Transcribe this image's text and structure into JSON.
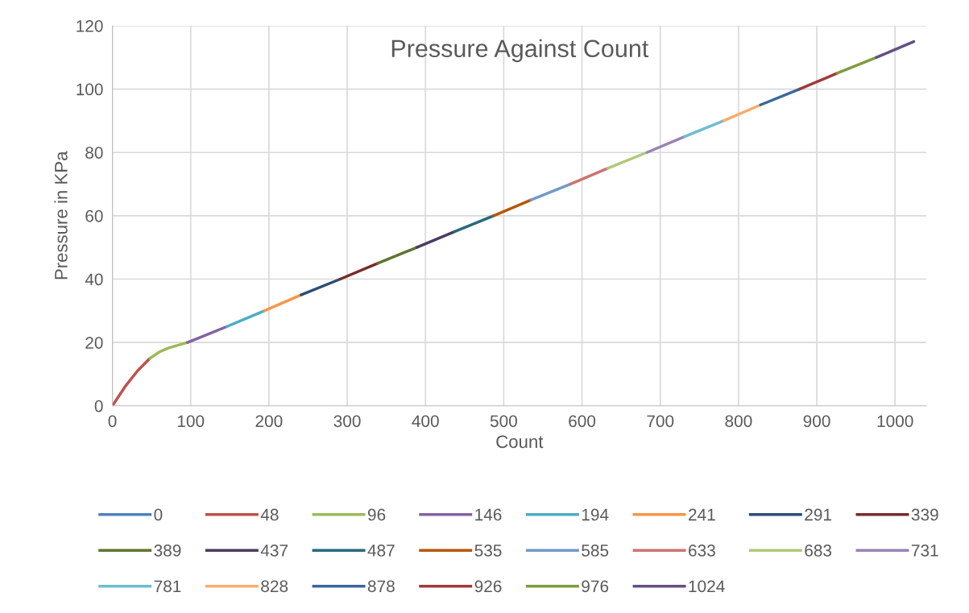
{
  "chart_data": {
    "type": "line",
    "title": "Pressure Against Count",
    "xlabel": "Count",
    "ylabel": "Pressure in KPa",
    "xlim": [
      0,
      1040
    ],
    "xticks": [
      0,
      100,
      200,
      300,
      400,
      500,
      600,
      700,
      800,
      900,
      1000
    ],
    "ylim": [
      0,
      120
    ],
    "yticks": [
      0,
      20,
      40,
      60,
      80,
      100,
      120
    ],
    "grid": true,
    "legend": "bottom",
    "marker": "none",
    "line_style": "solid",
    "series": [
      {
        "name": "0",
        "color": "#4f81bd",
        "x": [
          0
        ],
        "values": [
          0
        ]
      },
      {
        "name": "48",
        "color": "#c0504d",
        "x": [
          0,
          16,
          32,
          48
        ],
        "values": [
          0,
          6,
          11,
          15
        ]
      },
      {
        "name": "96",
        "color": "#9bbb59",
        "x": [
          48,
          60,
          72,
          96
        ],
        "values": [
          15,
          17,
          18.3,
          20
        ]
      },
      {
        "name": "146",
        "color": "#8064a2",
        "x": [
          96,
          146
        ],
        "values": [
          20,
          25
        ]
      },
      {
        "name": "194",
        "color": "#4bacc6",
        "x": [
          146,
          194
        ],
        "values": [
          25,
          30
        ]
      },
      {
        "name": "241",
        "color": "#f79646",
        "x": [
          194,
          241
        ],
        "values": [
          30,
          35
        ]
      },
      {
        "name": "291",
        "color": "#2c4d75",
        "x": [
          241,
          291
        ],
        "values": [
          35,
          40
        ]
      },
      {
        "name": "339",
        "color": "#772c2a",
        "x": [
          291,
          339
        ],
        "values": [
          40,
          45
        ]
      },
      {
        "name": "389",
        "color": "#5f7530",
        "x": [
          339,
          389
        ],
        "values": [
          45,
          50
        ]
      },
      {
        "name": "437",
        "color": "#4d3b62",
        "x": [
          389,
          437
        ],
        "values": [
          50,
          55
        ]
      },
      {
        "name": "487",
        "color": "#276a7c",
        "x": [
          437,
          487
        ],
        "values": [
          55,
          60
        ]
      },
      {
        "name": "535",
        "color": "#b65708",
        "x": [
          487,
          535
        ],
        "values": [
          60,
          65
        ]
      },
      {
        "name": "585",
        "color": "#729aca",
        "x": [
          535,
          585
        ],
        "values": [
          65,
          70
        ]
      },
      {
        "name": "633",
        "color": "#cd7371",
        "x": [
          585,
          633
        ],
        "values": [
          70,
          75
        ]
      },
      {
        "name": "683",
        "color": "#afc97a",
        "x": [
          633,
          683
        ],
        "values": [
          75,
          80
        ]
      },
      {
        "name": "731",
        "color": "#9983b5",
        "x": [
          683,
          731
        ],
        "values": [
          80,
          85
        ]
      },
      {
        "name": "781",
        "color": "#6fbdd1",
        "x": [
          731,
          781
        ],
        "values": [
          85,
          90
        ]
      },
      {
        "name": "828",
        "color": "#f9ab6b",
        "x": [
          781,
          828
        ],
        "values": [
          90,
          95
        ]
      },
      {
        "name": "878",
        "color": "#3a679c",
        "x": [
          828,
          878
        ],
        "values": [
          95,
          100
        ]
      },
      {
        "name": "926",
        "color": "#9f3b38",
        "x": [
          878,
          926
        ],
        "values": [
          100,
          105
        ]
      },
      {
        "name": "976",
        "color": "#7e9c40",
        "x": [
          926,
          976
        ],
        "values": [
          105,
          110
        ]
      },
      {
        "name": "1024",
        "color": "#664f83",
        "x": [
          976,
          1024
        ],
        "values": [
          110,
          115
        ]
      }
    ]
  }
}
